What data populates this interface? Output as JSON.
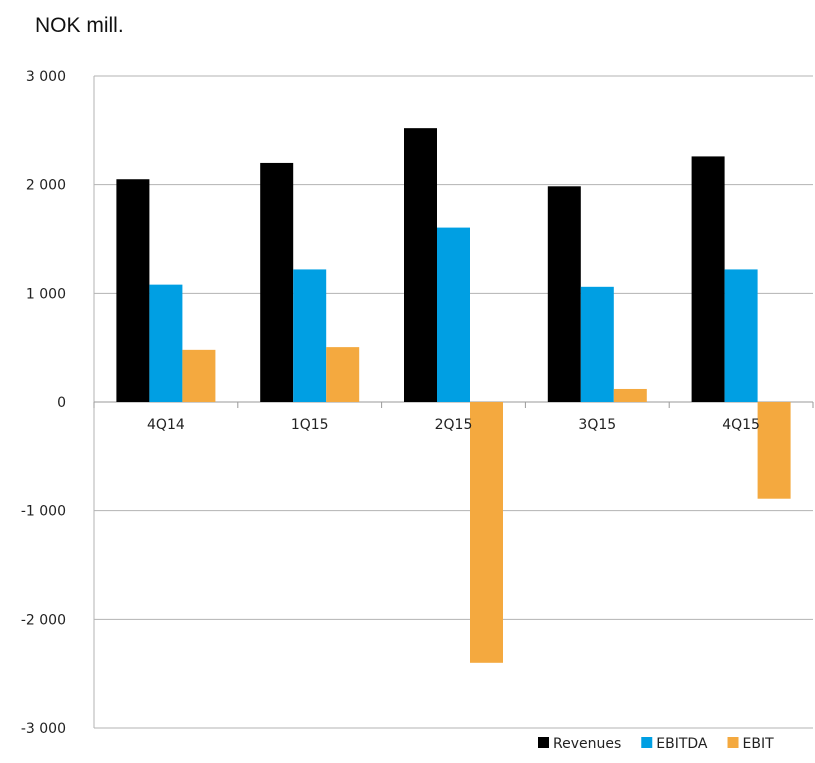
{
  "chart_data": {
    "type": "bar",
    "title": "NOK mill.",
    "xlabel": "",
    "ylabel": "",
    "categories": [
      "4Q14",
      "1Q15",
      "2Q15",
      "3Q15",
      "4Q15"
    ],
    "series": [
      {
        "name": "Revenues",
        "color": "#000000",
        "values": [
          2050,
          2200,
          2520,
          1985,
          2260
        ]
      },
      {
        "name": "EBITDA",
        "color": "#009fe3",
        "values": [
          1080,
          1220,
          1605,
          1060,
          1220
        ]
      },
      {
        "name": "EBIT",
        "color": "#f4a93f",
        "values": [
          480,
          505,
          -2400,
          120,
          -890
        ]
      }
    ],
    "ylim": [
      -3000,
      3000
    ],
    "yticks": [
      -3000,
      -2000,
      -1000,
      0,
      1000,
      2000,
      3000
    ],
    "ytick_labels": [
      "-3 000",
      "-2 000",
      "-1 000",
      "0",
      "1 000",
      "2 000",
      "3 000"
    ],
    "grid": true,
    "legend_position": "bottom-right"
  }
}
